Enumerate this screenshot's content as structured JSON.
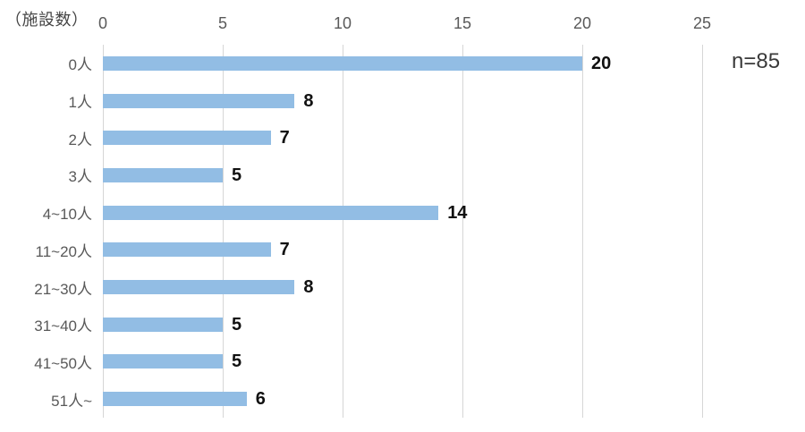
{
  "chart": {
    "unit_label": "（施設数）",
    "annotation": "n=85"
  },
  "chart_data": {
    "type": "bar",
    "orientation": "horizontal",
    "title": "",
    "unit_label": "（施設数）",
    "annotation": "n=85",
    "categories": [
      "0人",
      "1人",
      "2人",
      "3人",
      "4~10人",
      "11~20人",
      "21~30人",
      "31~40人",
      "41~50人",
      "51人~"
    ],
    "values": [
      20,
      8,
      7,
      5,
      14,
      7,
      8,
      5,
      5,
      6
    ],
    "xlabel": "",
    "ylabel": "（施設数）",
    "xlim": [
      0,
      25
    ],
    "x_ticks": [
      0,
      5,
      10,
      15,
      20,
      25
    ],
    "grid": true,
    "value_labels": true,
    "legend": false,
    "bar_color": "#92bde4",
    "gridline_color": "#d6d6d6",
    "tick_label_color": "#595959",
    "category_label_color": "#595959",
    "value_label_color": "#111111"
  }
}
